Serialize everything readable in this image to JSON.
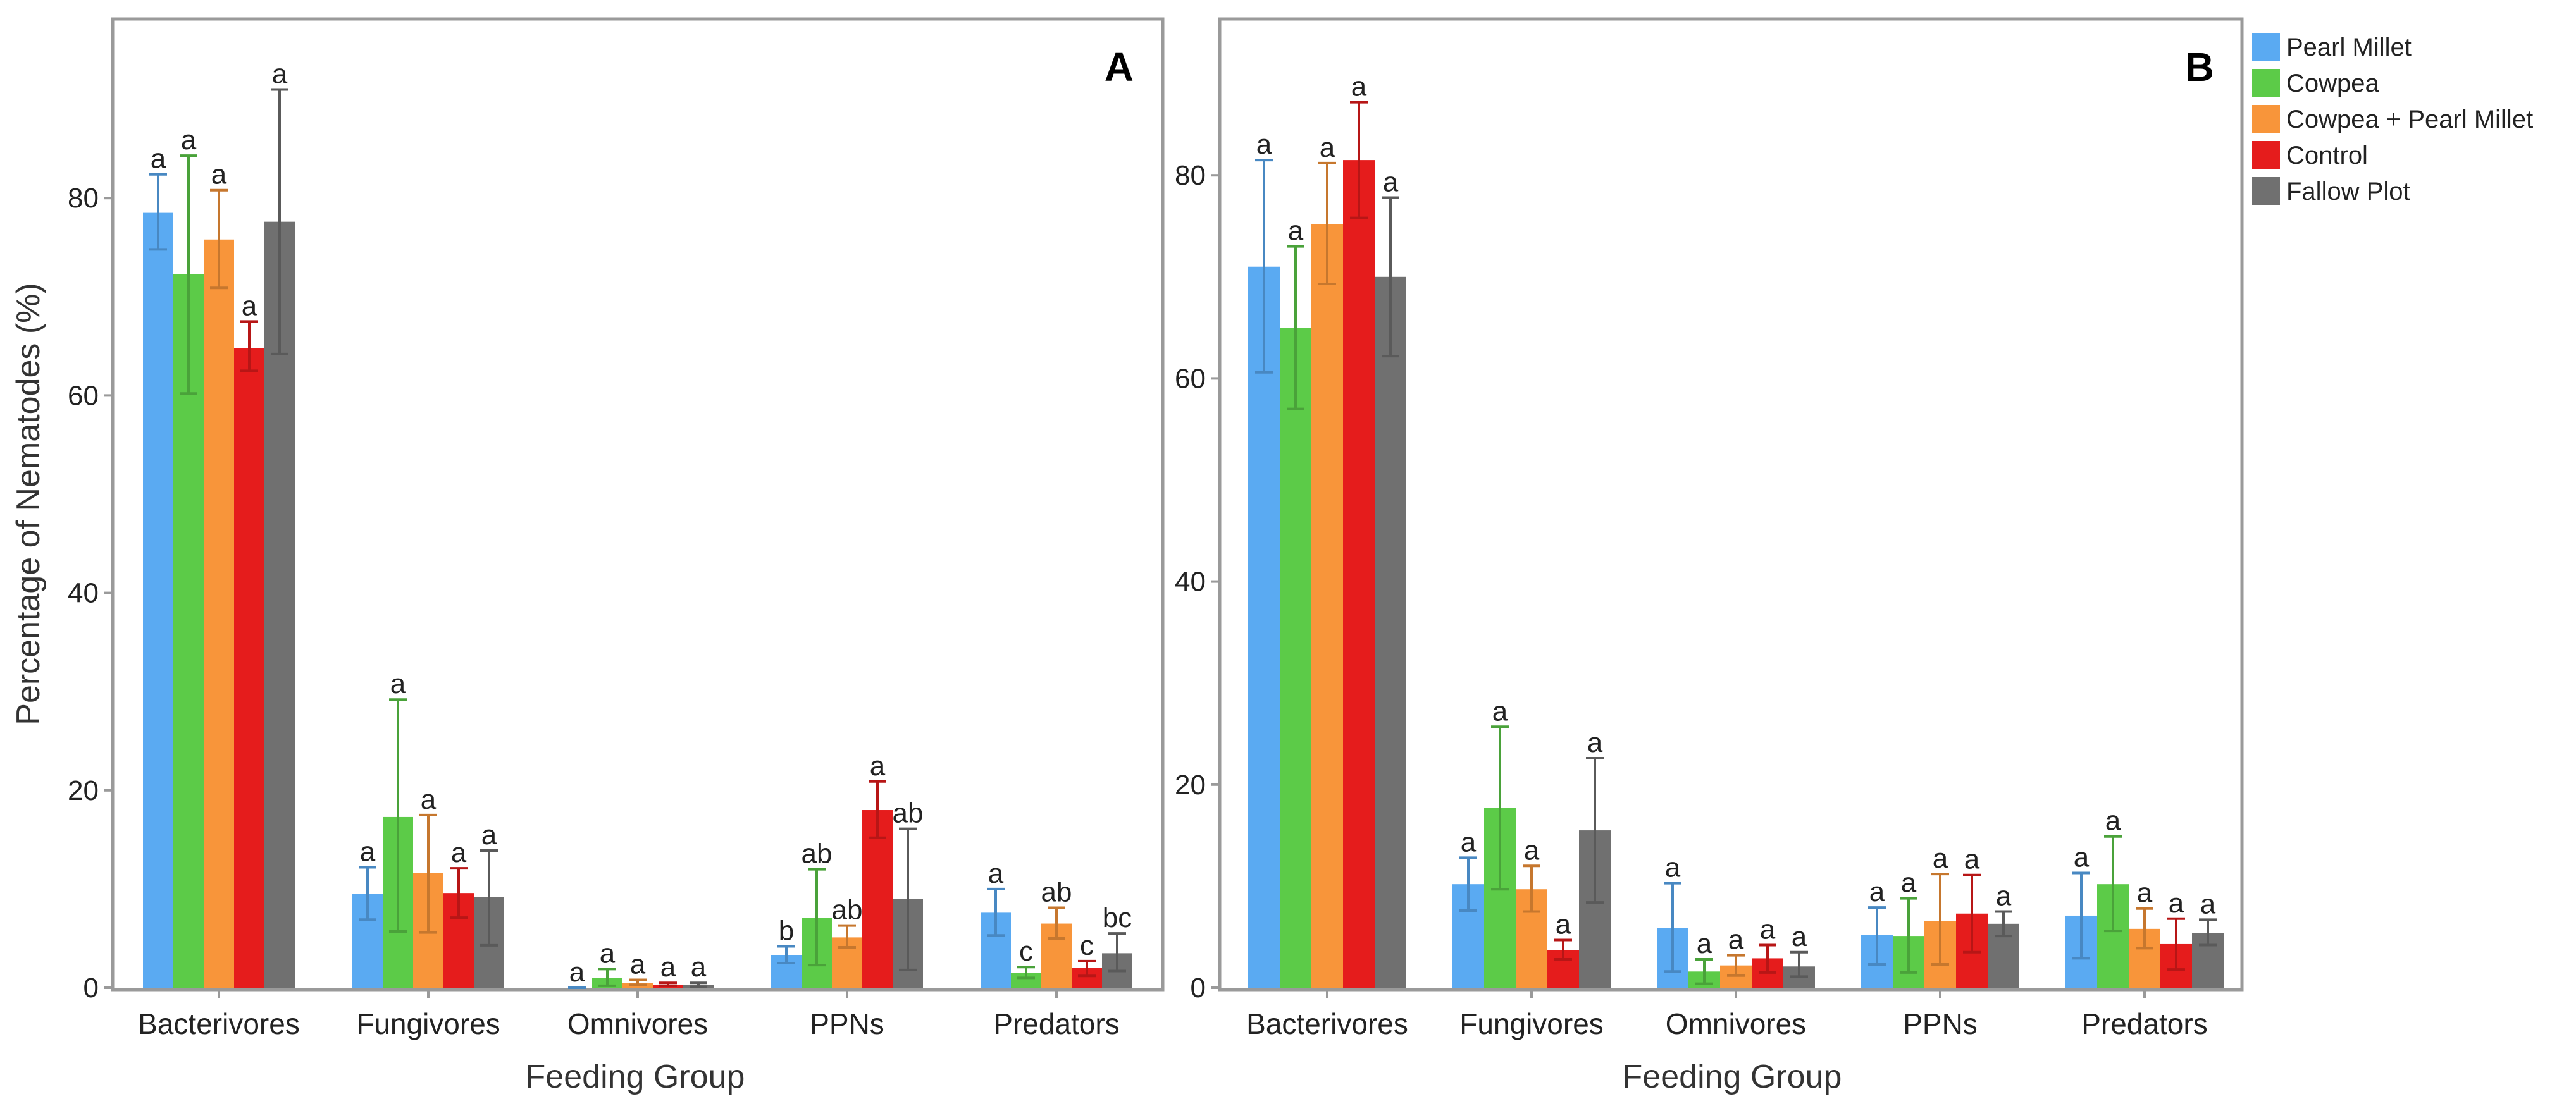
{
  "figure": {
    "ylabel": "Percentage of Nematodes (%)",
    "xlabel": "Feeding Group"
  },
  "legend": [
    {
      "name": "Pearl Millet",
      "color": "#5aaaf2"
    },
    {
      "name": "Cowpea",
      "color": "#5ccb48"
    },
    {
      "name": "Cowpea + Pearl Millet",
      "color": "#f8953a"
    },
    {
      "name": "Control",
      "color": "#e51c1c"
    },
    {
      "name": "Fallow Plot",
      "color": "#707070"
    }
  ],
  "chart_data": [
    {
      "type": "bar",
      "panel": "A",
      "categories": [
        "Bacterivores",
        "Fungivores",
        "Omnivores",
        "PPNs",
        "Predators"
      ],
      "xlabel": "Feeding Group",
      "ylabel": "Percentage of Nematodes (%)",
      "ylim": [
        0,
        98
      ],
      "yticks": [
        0,
        20,
        40,
        60,
        80
      ],
      "grid": false,
      "legend_position": "right",
      "series": [
        {
          "name": "Pearl Millet",
          "color": "#5aaaf2",
          "values": [
            78.5,
            9.5,
            0.0,
            3.3,
            7.6
          ],
          "err_low": [
            74.8,
            6.9,
            0.0,
            2.5,
            5.3
          ],
          "err_high": [
            82.4,
            12.2,
            0.0,
            4.2,
            10.0
          ],
          "labels": [
            "a",
            "a",
            "a",
            "b",
            "a"
          ]
        },
        {
          "name": "Cowpea",
          "color": "#5ccb48",
          "values": [
            72.3,
            17.3,
            1.0,
            7.1,
            1.5
          ],
          "err_low": [
            60.2,
            5.7,
            0.2,
            2.3,
            1.0
          ],
          "err_high": [
            84.3,
            29.2,
            1.9,
            12.0,
            2.1
          ],
          "labels": [
            "a",
            "a",
            "a",
            "ab",
            "c"
          ]
        },
        {
          "name": "Cowpea + Pearl Millet",
          "color": "#f8953a",
          "values": [
            75.8,
            11.6,
            0.5,
            5.1,
            6.5
          ],
          "err_low": [
            70.9,
            5.6,
            0.3,
            4.1,
            5.0
          ],
          "err_high": [
            80.8,
            17.5,
            0.8,
            6.3,
            8.1
          ],
          "labels": [
            "a",
            "a",
            "a",
            "ab",
            "ab"
          ]
        },
        {
          "name": "Control",
          "color": "#e51c1c",
          "values": [
            64.8,
            9.6,
            0.3,
            18.0,
            2.0
          ],
          "err_low": [
            62.5,
            7.1,
            0.2,
            15.2,
            1.2
          ],
          "err_high": [
            67.5,
            12.1,
            0.5,
            20.9,
            2.7
          ],
          "labels": [
            "a",
            "a",
            "a",
            "a",
            "c"
          ]
        },
        {
          "name": "Fallow Plot",
          "color": "#707070",
          "values": [
            77.6,
            9.2,
            0.3,
            9.0,
            3.5
          ],
          "err_low": [
            64.2,
            4.3,
            0.1,
            1.8,
            1.7
          ],
          "err_high": [
            91.0,
            13.9,
            0.5,
            16.1,
            5.5
          ],
          "labels": [
            "a",
            "a",
            "a",
            "ab",
            "bc"
          ]
        }
      ]
    },
    {
      "type": "bar",
      "panel": "B",
      "categories": [
        "Bacterivores",
        "Fungivores",
        "Omnivores",
        "PPNs",
        "Predators"
      ],
      "xlabel": "Feeding Group",
      "ylabel": "",
      "ylim": [
        0,
        95
      ],
      "yticks": [
        0,
        20,
        40,
        60,
        80
      ],
      "grid": false,
      "legend_position": "right",
      "series": [
        {
          "name": "Pearl Millet",
          "color": "#5aaaf2",
          "values": [
            71.0,
            10.2,
            5.9,
            5.2,
            7.1
          ],
          "err_low": [
            60.6,
            7.6,
            1.6,
            2.3,
            2.9
          ],
          "err_high": [
            81.5,
            12.8,
            10.3,
            7.9,
            11.3
          ],
          "labels": [
            "a",
            "a",
            "a",
            "a",
            "a"
          ]
        },
        {
          "name": "Cowpea",
          "color": "#5ccb48",
          "values": [
            65.0,
            17.7,
            1.6,
            5.1,
            10.2
          ],
          "err_low": [
            57.0,
            9.7,
            0.4,
            1.5,
            5.6
          ],
          "err_high": [
            73.0,
            25.7,
            2.8,
            8.8,
            14.9
          ],
          "labels": [
            "a",
            "a",
            "a",
            "a",
            "a"
          ]
        },
        {
          "name": "Cowpea + Pearl Millet",
          "color": "#f8953a",
          "values": [
            75.2,
            9.7,
            2.2,
            6.6,
            5.8
          ],
          "err_low": [
            69.3,
            7.5,
            1.2,
            2.3,
            3.9
          ],
          "err_high": [
            81.2,
            12.0,
            3.2,
            11.2,
            7.8
          ],
          "labels": [
            "a",
            "a",
            "a",
            "a",
            "a"
          ]
        },
        {
          "name": "Control",
          "color": "#e51c1c",
          "values": [
            81.5,
            3.7,
            2.9,
            7.3,
            4.3
          ],
          "err_low": [
            75.8,
            2.8,
            1.5,
            3.5,
            1.8
          ],
          "err_high": [
            87.2,
            4.7,
            4.2,
            11.1,
            6.8
          ],
          "labels": [
            "a",
            "a",
            "a",
            "a",
            "a"
          ]
        },
        {
          "name": "Fallow Plot",
          "color": "#707070",
          "values": [
            70.0,
            15.5,
            2.1,
            6.3,
            5.4
          ],
          "err_low": [
            62.2,
            8.4,
            1.1,
            5.1,
            4.2
          ],
          "err_high": [
            77.8,
            22.6,
            3.5,
            7.5,
            6.7
          ],
          "labels": [
            "a",
            "a",
            "a",
            "a",
            "a"
          ]
        }
      ]
    }
  ]
}
